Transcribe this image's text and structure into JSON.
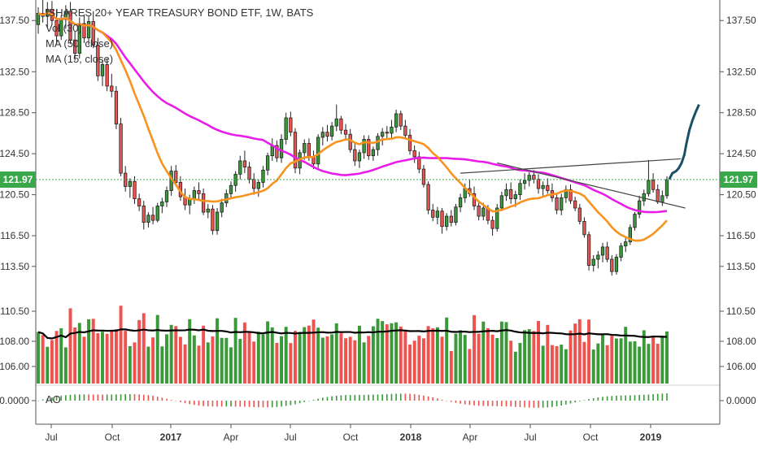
{
  "chart_data": {
    "type": "candlestick",
    "title": "ISHARES 20+ YEAR TREASURY BOND ETF, 1W, BATS",
    "legend": [
      "Vol (30)",
      "MA (50, close)",
      "MA (15, close)"
    ],
    "x_tick_labels": [
      "Jul",
      "Oct",
      "2017",
      "Apr",
      "Jul",
      "Oct",
      "2018",
      "Apr",
      "Jul",
      "Oct",
      "2019"
    ],
    "price_ticks": [
      "137.50",
      "132.50",
      "128.50",
      "124.50",
      "120.50",
      "116.50",
      "113.50"
    ],
    "volume_ticks": [
      "110.50",
      "108.00",
      "106.00"
    ],
    "ao_ticks": [
      "0.0000"
    ],
    "ao_label": "AO",
    "last_price": "121.97",
    "price_range": [
      110.0,
      139.5
    ],
    "current_price_line": 121.97,
    "colors": {
      "up": "#3a9a3a",
      "down": "#ef5350",
      "ma50": "#e81ee8",
      "ma15": "#f7931e",
      "projection": "#1b4f66",
      "trend": "#444444",
      "price_label_bg": "#3aa84a"
    },
    "candles": [
      [
        137.1,
        138.8,
        136.2,
        138.2
      ],
      [
        138.2,
        139.5,
        137.3,
        137.9
      ],
      [
        137.9,
        139.3,
        136.8,
        138.6
      ],
      [
        138.6,
        139.4,
        137.1,
        137.5
      ],
      [
        137.5,
        138.6,
        135.2,
        136.0
      ],
      [
        136.0,
        138.0,
        135.6,
        137.6
      ],
      [
        137.6,
        139.0,
        136.7,
        138.4
      ],
      [
        138.4,
        139.3,
        135.2,
        135.6
      ],
      [
        135.6,
        136.4,
        133.6,
        134.3
      ],
      [
        134.3,
        137.8,
        133.8,
        137.2
      ],
      [
        137.2,
        138.1,
        135.3,
        135.8
      ],
      [
        135.8,
        137.9,
        135.1,
        137.4
      ],
      [
        137.4,
        138.4,
        134.8,
        135.1
      ],
      [
        135.1,
        135.8,
        131.6,
        132.1
      ],
      [
        132.1,
        133.6,
        131.1,
        133.2
      ],
      [
        133.2,
        133.8,
        130.6,
        131.1
      ],
      [
        131.1,
        132.3,
        130.0,
        130.6
      ],
      [
        130.6,
        131.1,
        126.9,
        127.4
      ],
      [
        127.4,
        128.0,
        122.3,
        122.6
      ],
      [
        122.6,
        123.3,
        120.8,
        121.3
      ],
      [
        121.3,
        122.1,
        120.2,
        121.8
      ],
      [
        121.8,
        122.3,
        119.6,
        120.1
      ],
      [
        120.1,
        120.6,
        118.9,
        119.4
      ],
      [
        119.4,
        119.9,
        117.1,
        117.8
      ],
      [
        117.8,
        118.8,
        117.3,
        118.5
      ],
      [
        118.5,
        119.3,
        117.6,
        118.0
      ],
      [
        118.0,
        119.7,
        117.8,
        119.4
      ],
      [
        119.4,
        120.2,
        118.7,
        119.8
      ],
      [
        119.8,
        121.3,
        119.3,
        120.9
      ],
      [
        120.9,
        123.3,
        120.4,
        122.8
      ],
      [
        122.8,
        123.4,
        121.3,
        121.7
      ],
      [
        121.7,
        122.3,
        119.9,
        120.3
      ],
      [
        120.3,
        121.1,
        119.0,
        119.5
      ],
      [
        119.5,
        120.5,
        118.6,
        120.1
      ],
      [
        120.1,
        121.3,
        119.6,
        120.9
      ],
      [
        120.9,
        121.7,
        120.0,
        120.6
      ],
      [
        120.6,
        121.1,
        118.5,
        118.8
      ],
      [
        118.8,
        119.6,
        118.2,
        119.1
      ],
      [
        119.1,
        119.5,
        116.6,
        117.0
      ],
      [
        117.0,
        119.2,
        116.6,
        118.8
      ],
      [
        118.8,
        120.1,
        118.3,
        119.7
      ],
      [
        119.7,
        121.0,
        119.3,
        120.6
      ],
      [
        120.6,
        121.8,
        120.1,
        121.4
      ],
      [
        121.4,
        122.8,
        120.8,
        122.5
      ],
      [
        122.5,
        124.3,
        122.0,
        123.8
      ],
      [
        123.8,
        124.8,
        122.6,
        123.2
      ],
      [
        123.2,
        123.7,
        121.6,
        122.0
      ],
      [
        122.0,
        122.6,
        120.5,
        121.1
      ],
      [
        121.1,
        122.0,
        120.3,
        121.7
      ],
      [
        121.7,
        123.3,
        121.2,
        122.9
      ],
      [
        122.9,
        124.6,
        122.4,
        124.3
      ],
      [
        124.3,
        126.0,
        123.8,
        125.3
      ],
      [
        125.3,
        125.8,
        123.7,
        124.1
      ],
      [
        124.1,
        126.4,
        123.6,
        125.9
      ],
      [
        125.9,
        128.5,
        125.4,
        128.0
      ],
      [
        128.0,
        128.6,
        126.2,
        126.6
      ],
      [
        126.6,
        127.0,
        122.6,
        123.1
      ],
      [
        123.1,
        124.9,
        122.5,
        124.6
      ],
      [
        124.6,
        125.9,
        123.9,
        125.5
      ],
      [
        125.5,
        126.0,
        123.8,
        124.2
      ],
      [
        124.2,
        124.8,
        123.0,
        123.5
      ],
      [
        123.5,
        126.4,
        123.1,
        126.1
      ],
      [
        126.1,
        127.1,
        125.3,
        126.6
      ],
      [
        126.6,
        127.3,
        125.7,
        126.2
      ],
      [
        126.2,
        127.6,
        125.8,
        127.2
      ],
      [
        127.2,
        129.3,
        126.7,
        127.9
      ],
      [
        127.9,
        128.2,
        126.4,
        126.8
      ],
      [
        126.8,
        127.4,
        125.9,
        126.4
      ],
      [
        126.4,
        126.9,
        124.6,
        124.9
      ],
      [
        124.9,
        125.6,
        123.3,
        123.8
      ],
      [
        123.8,
        124.9,
        123.1,
        124.6
      ],
      [
        124.6,
        126.3,
        124.0,
        125.9
      ],
      [
        125.9,
        126.3,
        123.9,
        124.3
      ],
      [
        124.3,
        125.2,
        123.8,
        124.9
      ],
      [
        124.9,
        126.5,
        124.3,
        126.2
      ],
      [
        126.2,
        127.0,
        125.3,
        126.6
      ],
      [
        126.6,
        127.2,
        125.9,
        126.5
      ],
      [
        126.5,
        127.8,
        126.0,
        127.1
      ],
      [
        127.1,
        128.8,
        126.6,
        128.4
      ],
      [
        128.4,
        128.7,
        126.8,
        127.2
      ],
      [
        127.2,
        127.8,
        126.0,
        126.3
      ],
      [
        126.3,
        126.9,
        124.4,
        124.8
      ],
      [
        124.8,
        125.3,
        123.6,
        124.2
      ],
      [
        124.2,
        124.7,
        122.6,
        123.0
      ],
      [
        123.0,
        123.4,
        121.2,
        121.5
      ],
      [
        121.5,
        121.8,
        118.6,
        119.0
      ],
      [
        119.0,
        119.6,
        117.9,
        118.3
      ],
      [
        118.3,
        119.3,
        117.6,
        118.9
      ],
      [
        118.9,
        119.2,
        116.7,
        117.4
      ],
      [
        117.4,
        118.7,
        117.0,
        118.4
      ],
      [
        118.4,
        119.0,
        117.4,
        117.8
      ],
      [
        117.8,
        119.6,
        117.5,
        119.3
      ],
      [
        119.3,
        120.6,
        118.8,
        120.2
      ],
      [
        120.2,
        121.6,
        119.7,
        121.1
      ],
      [
        121.1,
        122.0,
        120.3,
        120.6
      ],
      [
        120.6,
        121.3,
        119.0,
        119.4
      ],
      [
        119.4,
        119.8,
        118.0,
        118.4
      ],
      [
        118.4,
        119.7,
        118.0,
        119.2
      ],
      [
        119.2,
        119.5,
        117.6,
        118.0
      ],
      [
        118.0,
        118.4,
        116.5,
        117.2
      ],
      [
        117.2,
        119.6,
        116.9,
        119.2
      ],
      [
        119.2,
        120.8,
        118.9,
        120.4
      ],
      [
        120.4,
        121.6,
        119.9,
        121.0
      ],
      [
        121.0,
        121.7,
        119.6,
        120.1
      ],
      [
        120.1,
        120.9,
        119.3,
        120.5
      ],
      [
        120.5,
        122.0,
        120.0,
        121.6
      ],
      [
        121.6,
        122.6,
        121.0,
        121.9
      ],
      [
        121.9,
        122.7,
        121.3,
        122.4
      ],
      [
        122.4,
        122.9,
        121.6,
        122.0
      ],
      [
        122.0,
        122.5,
        120.6,
        121.1
      ],
      [
        121.1,
        121.8,
        120.4,
        121.4
      ],
      [
        121.4,
        122.1,
        120.6,
        120.9
      ],
      [
        120.9,
        121.6,
        119.8,
        120.2
      ],
      [
        120.2,
        120.7,
        118.6,
        119.0
      ],
      [
        119.0,
        120.6,
        118.5,
        120.2
      ],
      [
        120.2,
        121.4,
        119.7,
        121.0
      ],
      [
        121.0,
        121.5,
        119.6,
        119.9
      ],
      [
        119.9,
        120.3,
        118.9,
        119.2
      ],
      [
        119.2,
        119.6,
        117.6,
        117.9
      ],
      [
        117.9,
        118.3,
        116.3,
        116.6
      ],
      [
        116.6,
        116.9,
        113.1,
        113.6
      ],
      [
        113.6,
        114.6,
        113.0,
        114.2
      ],
      [
        114.2,
        115.0,
        113.3,
        114.6
      ],
      [
        114.6,
        115.8,
        113.9,
        115.4
      ],
      [
        115.4,
        115.9,
        113.9,
        114.2
      ],
      [
        114.2,
        114.6,
        112.6,
        113.0
      ],
      [
        113.0,
        114.7,
        112.7,
        114.4
      ],
      [
        114.4,
        115.8,
        114.0,
        115.5
      ],
      [
        115.5,
        116.3,
        114.9,
        115.9
      ],
      [
        115.9,
        117.6,
        115.6,
        117.3
      ],
      [
        117.3,
        118.8,
        117.0,
        118.6
      ],
      [
        118.6,
        120.4,
        118.2,
        119.9
      ],
      [
        119.9,
        121.0,
        119.4,
        120.6
      ],
      [
        120.6,
        123.9,
        120.3,
        121.9
      ],
      [
        121.9,
        122.6,
        120.7,
        121.0
      ],
      [
        121.0,
        121.5,
        119.6,
        119.8
      ],
      [
        119.8,
        120.9,
        119.4,
        120.4
      ],
      [
        120.4,
        122.3,
        120.1,
        121.97
      ]
    ],
    "volume": [],
    "annotations": [
      "dotted current price line",
      "ascending trendline",
      "descending trendline",
      "projected price curve"
    ]
  }
}
